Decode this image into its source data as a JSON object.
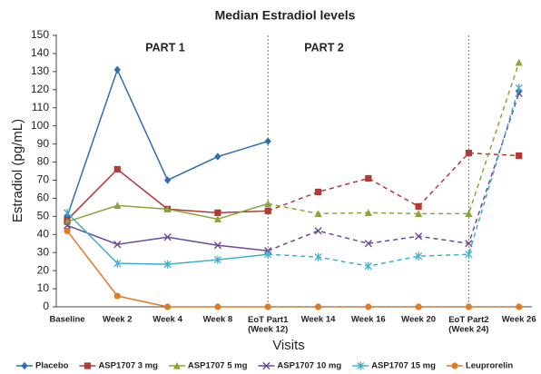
{
  "chart_data": {
    "type": "line",
    "title": "Median Estradiol levels",
    "x_label": "Visits",
    "y_label": "Estradiol (pg/mL)",
    "annotations": [
      "PART 1",
      "PART 2"
    ],
    "categories": [
      "Baseline",
      "Week 2",
      "Week 4",
      "Week 8",
      "EoT Part1\n(Week 12)",
      "Week 14",
      "Week 16",
      "Week 20",
      "EoT Part2\n(Week 24)",
      "Week 26"
    ],
    "ylim": [
      0,
      150
    ],
    "yticks": [
      0,
      10,
      20,
      30,
      40,
      50,
      60,
      70,
      80,
      90,
      100,
      110,
      120,
      130,
      140,
      150
    ],
    "grid": false,
    "legend": "bottom",
    "series": [
      {
        "name": "Placebo",
        "color": "#2f6db0",
        "marker": "diamond",
        "values": [
          50,
          131,
          70,
          83,
          91.5,
          null,
          null,
          null,
          null,
          119
        ]
      },
      {
        "name": "ASP1707 3 mg",
        "color": "#b13a36",
        "marker": "square",
        "values": [
          48,
          76,
          54,
          52,
          53,
          63.5,
          71,
          55.5,
          85,
          83.5
        ]
      },
      {
        "name": "ASP1707 5 mg",
        "color": "#8aa63a",
        "marker": "triangle",
        "values": [
          47,
          56,
          54,
          48.5,
          57,
          51.5,
          52,
          51.5,
          51.5,
          135
        ]
      },
      {
        "name": "ASP1707 10 mg",
        "color": "#6a4b94",
        "marker": "x",
        "values": [
          45,
          34.5,
          38.5,
          34,
          31,
          42,
          35,
          39,
          35,
          118
        ]
      },
      {
        "name": "ASP1707 15 mg",
        "color": "#3fb0cc",
        "marker": "asterisk",
        "values": [
          52,
          24,
          23.5,
          26,
          29,
          27.5,
          22.5,
          28,
          29,
          121
        ]
      },
      {
        "name": "Leuprorelin",
        "color": "#e07a25",
        "marker": "circle",
        "values": [
          42,
          6,
          0,
          0,
          0,
          0,
          0,
          0,
          0,
          0
        ]
      }
    ]
  }
}
